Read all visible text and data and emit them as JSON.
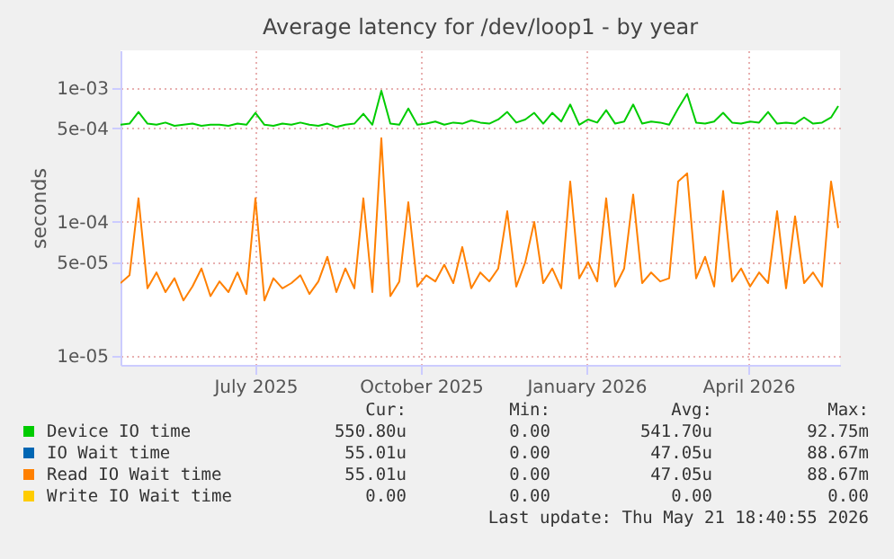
{
  "chart_data": {
    "type": "line",
    "title": "Average latency for /dev/loop1 - by year",
    "ylabel": "seconds",
    "log": "y",
    "grid": true,
    "legend": "bottom",
    "marker": "none",
    "line_style": "solid",
    "x": [
      "2025-04-17",
      "2025-04-22",
      "2025-04-27",
      "2025-05-02",
      "2025-05-07",
      "2025-05-12",
      "2025-05-17",
      "2025-05-22",
      "2025-05-27",
      "2025-06-01",
      "2025-06-06",
      "2025-06-11",
      "2025-06-16",
      "2025-06-21",
      "2025-06-26",
      "2025-07-01",
      "2025-07-06",
      "2025-07-11",
      "2025-07-16",
      "2025-07-21",
      "2025-07-26",
      "2025-07-31",
      "2025-08-05",
      "2025-08-10",
      "2025-08-15",
      "2025-08-20",
      "2025-08-25",
      "2025-08-30",
      "2025-09-04",
      "2025-09-09",
      "2025-09-14",
      "2025-09-19",
      "2025-09-24",
      "2025-09-29",
      "2025-10-04",
      "2025-10-09",
      "2025-10-14",
      "2025-10-19",
      "2025-10-24",
      "2025-10-29",
      "2025-11-03",
      "2025-11-08",
      "2025-11-13",
      "2025-11-18",
      "2025-11-23",
      "2025-11-28",
      "2025-12-03",
      "2025-12-08",
      "2025-12-13",
      "2025-12-18",
      "2025-12-23",
      "2025-12-28",
      "2026-01-02",
      "2026-01-07",
      "2026-01-12",
      "2026-01-17",
      "2026-01-22",
      "2026-01-27",
      "2026-02-01",
      "2026-02-06",
      "2026-02-11",
      "2026-02-16",
      "2026-02-21",
      "2026-02-26",
      "2026-03-03",
      "2026-03-08",
      "2026-03-13",
      "2026-03-18",
      "2026-03-23",
      "2026-03-28",
      "2026-04-02",
      "2026-04-07",
      "2026-04-12",
      "2026-04-17",
      "2026-04-22",
      "2026-04-27",
      "2026-05-02",
      "2026-05-07",
      "2026-05-12",
      "2026-05-17",
      "2026-05-21"
    ],
    "xlim": [
      "2025-04-17",
      "2026-05-22"
    ],
    "xticks": [
      {
        "value": "2025-07-01",
        "label": "July 2025"
      },
      {
        "value": "2025-10-01",
        "label": "October 2025"
      },
      {
        "value": "2026-01-01",
        "label": "January 2026"
      },
      {
        "value": "2026-04-01",
        "label": "April 2026"
      }
    ],
    "ylim": [
      8.6e-06,
      0.0019
    ],
    "yticks": [
      {
        "value": 1e-05,
        "label": "1e-05"
      },
      {
        "value": 5e-05,
        "label": "5e-05"
      },
      {
        "value": 0.0001,
        "label": "1e-04"
      },
      {
        "value": 0.0005,
        "label": "5e-04"
      },
      {
        "value": 0.001,
        "label": "1e-03"
      }
    ],
    "series": [
      {
        "name": "Device IO time",
        "color": "#00cc00",
        "values": [
          0.00053,
          0.00054,
          0.00066,
          0.00054,
          0.00053,
          0.00055,
          0.00052,
          0.00053,
          0.00054,
          0.00052,
          0.00053,
          0.00053,
          0.00052,
          0.00054,
          0.00053,
          0.00065,
          0.00053,
          0.00052,
          0.00054,
          0.00053,
          0.00055,
          0.00053,
          0.00052,
          0.00054,
          0.00051,
          0.00053,
          0.00054,
          0.00064,
          0.00053,
          0.00095,
          0.00054,
          0.00053,
          0.0007,
          0.00053,
          0.00054,
          0.00056,
          0.00053,
          0.00055,
          0.00054,
          0.00057,
          0.00055,
          0.00054,
          0.00058,
          0.00066,
          0.00055,
          0.00058,
          0.00065,
          0.00054,
          0.00065,
          0.00056,
          0.00075,
          0.00053,
          0.00058,
          0.00055,
          0.00068,
          0.00054,
          0.00056,
          0.00075,
          0.00054,
          0.00056,
          0.00055,
          0.00053,
          0.0007,
          0.0009,
          0.00055,
          0.00054,
          0.00056,
          0.00065,
          0.00055,
          0.00054,
          0.00056,
          0.00055,
          0.00066,
          0.00054,
          0.00055,
          0.00054,
          0.0006,
          0.00054,
          0.00055,
          0.0006,
          0.00073
        ]
      },
      {
        "name": "IO Wait time",
        "color": "#0066b3",
        "values": [
          null,
          null,
          null,
          null,
          null,
          null,
          null,
          null,
          null,
          null,
          null,
          null,
          null,
          null,
          null,
          null,
          null,
          null,
          null,
          null,
          null,
          null,
          null,
          null,
          null,
          null,
          null,
          null,
          null,
          null,
          null,
          null,
          null,
          null,
          null,
          null,
          null,
          null,
          null,
          null,
          null,
          null,
          null,
          null,
          null,
          null,
          null,
          null,
          null,
          null,
          null,
          null,
          null,
          null,
          null,
          null,
          null,
          null,
          null,
          null,
          null,
          null,
          null,
          null,
          null,
          null,
          null,
          null,
          null,
          null,
          null,
          null,
          null,
          null,
          null,
          null,
          null,
          null,
          null,
          null,
          null
        ]
      },
      {
        "name": "Read IO Wait time",
        "color": "#ff8000",
        "values": [
          3.5e-05,
          4e-05,
          0.00015,
          3.2e-05,
          4.2e-05,
          3e-05,
          3.8e-05,
          2.6e-05,
          3.3e-05,
          4.5e-05,
          2.8e-05,
          3.6e-05,
          3e-05,
          4.2e-05,
          2.9e-05,
          0.00015,
          2.6e-05,
          3.8e-05,
          3.2e-05,
          3.5e-05,
          4e-05,
          2.9e-05,
          3.6e-05,
          5.5e-05,
          3e-05,
          4.5e-05,
          3.2e-05,
          0.00015,
          3e-05,
          0.00042,
          2.8e-05,
          3.6e-05,
          0.00014,
          3.3e-05,
          4e-05,
          3.6e-05,
          4.8e-05,
          3.5e-05,
          6.5e-05,
          3.2e-05,
          4.2e-05,
          3.6e-05,
          4.5e-05,
          0.00012,
          3.3e-05,
          5e-05,
          0.0001,
          3.5e-05,
          4.5e-05,
          3.2e-05,
          0.0002,
          3.8e-05,
          5e-05,
          3.6e-05,
          0.00015,
          3.3e-05,
          4.5e-05,
          0.00016,
          3.5e-05,
          4.2e-05,
          3.6e-05,
          3.8e-05,
          0.0002,
          0.00023,
          3.8e-05,
          5.5e-05,
          3.3e-05,
          0.00017,
          3.6e-05,
          4.5e-05,
          3.3e-05,
          4.2e-05,
          3.5e-05,
          0.00012,
          3.2e-05,
          0.00011,
          3.5e-05,
          4.2e-05,
          3.3e-05,
          0.0002,
          9e-05
        ]
      },
      {
        "name": "Write IO Wait time",
        "color": "#ffcc00",
        "values": [
          null,
          null,
          null,
          null,
          null,
          null,
          null,
          null,
          null,
          null,
          null,
          null,
          null,
          null,
          null,
          null,
          null,
          null,
          null,
          null,
          null,
          null,
          null,
          null,
          null,
          null,
          null,
          null,
          null,
          null,
          null,
          null,
          null,
          null,
          null,
          null,
          null,
          null,
          null,
          null,
          null,
          null,
          null,
          null,
          null,
          null,
          null,
          null,
          null,
          null,
          null,
          null,
          null,
          null,
          null,
          null,
          null,
          null,
          null,
          null,
          null,
          null,
          null,
          null,
          null,
          null,
          null,
          null,
          null,
          null,
          null,
          null,
          null,
          null,
          null,
          null,
          null,
          null,
          null,
          null,
          null
        ]
      }
    ],
    "annotations": [
      "Cur:",
      "Min:",
      "Avg:",
      "Max:",
      "550.80u",
      "0.00",
      "541.70u",
      "92.75m",
      "55.01u",
      "0.00",
      "47.05u",
      "88.67m",
      "55.01u",
      "0.00",
      "47.05u",
      "88.67m",
      "0.00",
      "0.00",
      "0.00",
      "0.00",
      "Last update: Thu May 21 18:40:55 2026"
    ]
  }
}
